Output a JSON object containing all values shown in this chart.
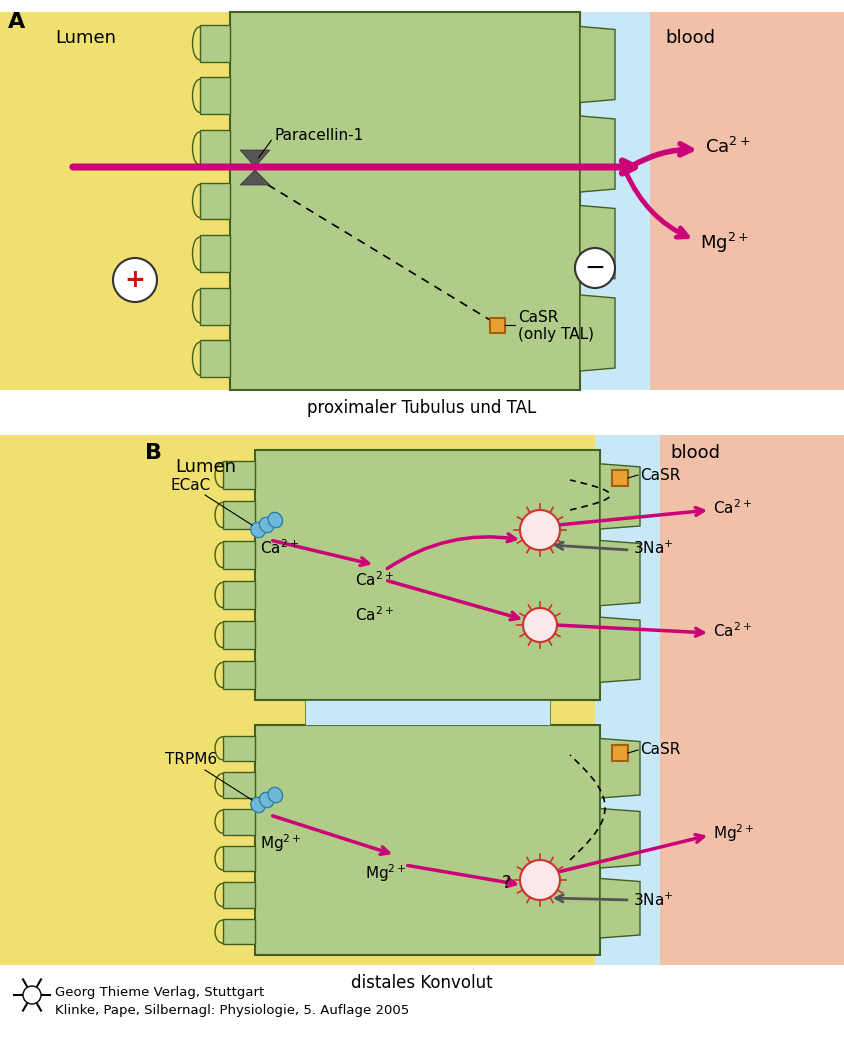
{
  "bg_white": "#ffffff",
  "lumen_color": "#f0e070",
  "cell_color_light": "#c8dca8",
  "cell_color": "#b0cc88",
  "cell_border": "#406020",
  "blood_color": "#f0c0a8",
  "intercellular_color": "#c8e8f8",
  "arrow_magenta": "#cc0077",
  "arrow_gray": "#555555",
  "casr_color": "#e8a030",
  "casr_border": "#a06010",
  "ecac_color": "#70b8d8",
  "ecac_border": "#3080a8",
  "circle_red": "#cc1111",
  "pump_fill": "#fce8e8",
  "pump_border": "#cc3333",
  "label_A": "A",
  "label_B": "B",
  "lumen_text": "Lumen",
  "blood_text": "blood",
  "paracellin_text": "Paracellin-1",
  "casr_text": "CaSR",
  "only_tal_text": "(only TAL)",
  "prox_caption": "proximaler Tubulus und TAL",
  "dist_caption": "distales Konvolut",
  "ecac_text": "ECaC",
  "trpm6_text": "TRPM6",
  "publisher_text": "Georg Thieme Verlag, Stuttgart",
  "book_text": "Klinke, Pape, Silbernagl: Physiologie, 5. Auflage 2005"
}
